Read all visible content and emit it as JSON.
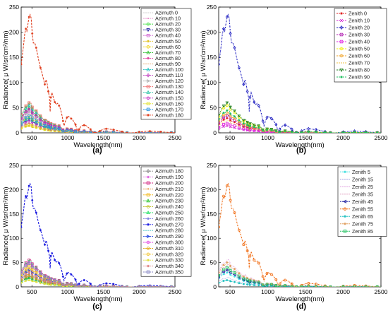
{
  "chart_data": [
    {
      "type": "line",
      "panel": "(a)",
      "xlabel": "Wavelength(nm)",
      "ylabel": "Radiance( μ W/sr/cm²/nm)",
      "xlim": [
        350,
        2500
      ],
      "ylim": [
        0,
        250
      ],
      "xticks": [
        500,
        1000,
        1500,
        2000,
        2500
      ],
      "yticks": [
        0,
        50,
        100,
        150,
        200,
        250
      ],
      "legend_position": "top-right",
      "peak": 235,
      "highlight_index": 18,
      "series": [
        {
          "name": "Azimuth 0",
          "color": "#c8c8c8",
          "marker": "none"
        },
        {
          "name": "Azimuth 10",
          "color": "#e68ac8",
          "marker": "dot"
        },
        {
          "name": "Azimuth 20",
          "color": "#40e040",
          "marker": "circle"
        },
        {
          "name": "Azimuth 30",
          "color": "#1a1aa0",
          "marker": "triangle-down"
        },
        {
          "name": "Azimuth 40",
          "color": "#d060d0",
          "marker": "square"
        },
        {
          "name": "Azimuth 50",
          "color": "#e0c020",
          "marker": "star"
        },
        {
          "name": "Azimuth 60",
          "color": "#f0d000",
          "marker": "circle"
        },
        {
          "name": "Azimuth 70",
          "color": "#30c030",
          "marker": "triangle-up"
        },
        {
          "name": "Azimuth 80",
          "color": "#e040a0",
          "marker": "star"
        },
        {
          "name": "Azimuth 90",
          "color": "#e0a060",
          "marker": "none"
        },
        {
          "name": "Azimuth 100",
          "color": "#20c0c0",
          "marker": "triangle-up"
        },
        {
          "name": "Azimuth 110",
          "color": "#c040c0",
          "marker": "diamond"
        },
        {
          "name": "Azimuth 120",
          "color": "#b0b0b0",
          "marker": "triangle-right"
        },
        {
          "name": "Azimuth 130",
          "color": "#f06060",
          "marker": "square"
        },
        {
          "name": "Azimuth 140",
          "color": "#20c0a0",
          "marker": "triangle-up"
        },
        {
          "name": "Azimuth 150",
          "color": "#c020c0",
          "marker": "circle"
        },
        {
          "name": "Azimuth 160",
          "color": "#e0e020",
          "marker": "square"
        },
        {
          "name": "Azimuth 170",
          "color": "#2090e0",
          "marker": "square"
        },
        {
          "name": "Azimuth 180",
          "color": "#e04020",
          "marker": "star"
        }
      ]
    },
    {
      "type": "line",
      "panel": "(b)",
      "xlabel": "Wavelength(nm)",
      "ylabel": "Radiance( μ W/sr/cm²/nm)",
      "xlim": [
        350,
        2500
      ],
      "ylim": [
        0,
        250
      ],
      "xticks": [
        500,
        1000,
        1500,
        2000,
        2500
      ],
      "yticks": [
        0,
        50,
        100,
        150,
        200,
        250
      ],
      "legend_position": "top-right",
      "peak": 235,
      "highlight_index": 2,
      "series": [
        {
          "name": "Zenith 0",
          "color": "#e02020",
          "marker": "star"
        },
        {
          "name": "Zenith 10",
          "color": "#d020d0",
          "marker": "x"
        },
        {
          "name": "Zenith 20",
          "color": "#2020c0",
          "marker": "diamond"
        },
        {
          "name": "Zenith 30",
          "color": "#b020b0",
          "marker": "square"
        },
        {
          "name": "Zenith 40",
          "color": "#e020e0",
          "marker": "square"
        },
        {
          "name": "Zenith 50",
          "color": "#f0f000",
          "marker": "circle"
        },
        {
          "name": "Zenith 60",
          "color": "#f0a020",
          "marker": "circle"
        },
        {
          "name": "Zenith 70",
          "color": "#f0c040",
          "marker": "none"
        },
        {
          "name": "Zenith 80",
          "color": "#208020",
          "marker": "triangle-down"
        },
        {
          "name": "Zenith 90",
          "color": "#20c060",
          "marker": "star"
        }
      ]
    },
    {
      "type": "line",
      "panel": "(c)",
      "xlabel": "Wavelength(nm)",
      "ylabel": "Radiance( μ W/sr/cm²/nm)",
      "xlim": [
        350,
        2500
      ],
      "ylim": [
        0,
        250
      ],
      "xticks": [
        500,
        1000,
        1500,
        2000,
        2500
      ],
      "yticks": [
        0,
        50,
        100,
        150,
        200,
        250
      ],
      "legend_position": "top-right",
      "peak": 212,
      "highlight_index": 9,
      "series": [
        {
          "name": "Azimuth 180",
          "color": "#808080",
          "marker": "diamond"
        },
        {
          "name": "Azimuth 190",
          "color": "#e060e0",
          "marker": "star"
        },
        {
          "name": "Azimuth 200",
          "color": "#d02080",
          "marker": "square"
        },
        {
          "name": "Azimuth 210",
          "color": "#e08020",
          "marker": "dot"
        },
        {
          "name": "Azimuth 220",
          "color": "#f0b000",
          "marker": "square"
        },
        {
          "name": "Azimuth 230",
          "color": "#20c020",
          "marker": "triangle-up"
        },
        {
          "name": "Azimuth 240",
          "color": "#c0c020",
          "marker": "circle"
        },
        {
          "name": "Azimuth 250",
          "color": "#20e060",
          "marker": "triangle-up"
        },
        {
          "name": "Azimuth 260",
          "color": "#8080e0",
          "marker": "star"
        },
        {
          "name": "Azimuth 270",
          "color": "#1a1ae0",
          "marker": "star"
        },
        {
          "name": "Azimuth 280",
          "color": "#40c0c0",
          "marker": "none"
        },
        {
          "name": "Azimuth 290",
          "color": "#2040e0",
          "marker": "triangle-right"
        },
        {
          "name": "Azimuth 300",
          "color": "#e040e0",
          "marker": "circle"
        },
        {
          "name": "Azimuth 310",
          "color": "#e0a000",
          "marker": "circle"
        },
        {
          "name": "Azimuth 320",
          "color": "#f0c020",
          "marker": "circle"
        },
        {
          "name": "Azimuth 330",
          "color": "#e0e040",
          "marker": "star"
        },
        {
          "name": "Azimuth 340",
          "color": "#e08080",
          "marker": "star"
        },
        {
          "name": "Azimuth 350",
          "color": "#8080c0",
          "marker": "square"
        }
      ]
    },
    {
      "type": "line",
      "panel": "(d)",
      "xlabel": "Wavelength(nm)",
      "ylabel": "Radiance( μ W/sr/cm²/nm)",
      "xlim": [
        350,
        2500
      ],
      "ylim": [
        0,
        250
      ],
      "xticks": [
        500,
        1000,
        1500,
        2000,
        2500
      ],
      "yticks": [
        0,
        50,
        100,
        150,
        200,
        250
      ],
      "legend_position": "top-right",
      "peak": 212,
      "highlight_index": 5,
      "series": [
        {
          "name": "Zenith 5",
          "color": "#40e0e0",
          "marker": "star"
        },
        {
          "name": "Zenith 15",
          "color": "#a0a0e0",
          "marker": "none"
        },
        {
          "name": "Zenith 25",
          "color": "#e0a0e0",
          "marker": "none"
        },
        {
          "name": "Zenith 35",
          "color": "#e0a0c0",
          "marker": "none"
        },
        {
          "name": "Zenith 45",
          "color": "#2020a0",
          "marker": "triangle-left"
        },
        {
          "name": "Zenith 55",
          "color": "#f06a10",
          "marker": "circle"
        },
        {
          "name": "Zenith 65",
          "color": "#20c0c0",
          "marker": "star"
        },
        {
          "name": "Zenith 75",
          "color": "#e0a060",
          "marker": "star"
        },
        {
          "name": "Zenith 85",
          "color": "#20c060",
          "marker": "square"
        }
      ]
    }
  ]
}
